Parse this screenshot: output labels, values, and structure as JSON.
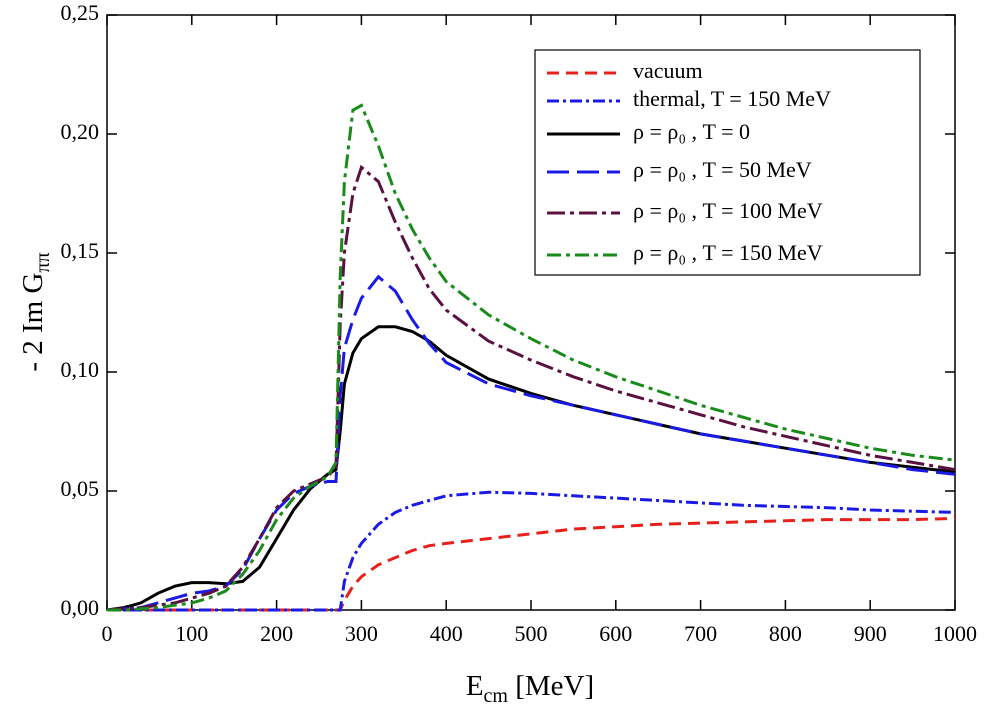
{
  "chart_data": {
    "type": "line",
    "xlabel": {
      "main": "E",
      "sub": "cm",
      "unit": " [MeV]"
    },
    "ylabel": {
      "main": "- 2 Im G",
      "sub": "ππ"
    },
    "xlim": [
      0,
      1000
    ],
    "xticks": [
      0,
      100,
      200,
      300,
      400,
      500,
      600,
      700,
      800,
      900,
      1000
    ],
    "ylim": [
      0,
      0.25
    ],
    "yticks": [
      {
        "value": 0,
        "label": "0,00"
      },
      {
        "value": 0.05,
        "label": "0,05"
      },
      {
        "value": 0.1,
        "label": "0,10"
      },
      {
        "value": 0.15,
        "label": "0,15"
      },
      {
        "value": 0.2,
        "label": "0,20"
      },
      {
        "value": 0.25,
        "label": "0,25"
      }
    ],
    "legend": "upper right",
    "x": [
      0,
      20,
      40,
      60,
      80,
      100,
      120,
      140,
      160,
      180,
      200,
      220,
      240,
      260,
      270,
      275,
      280,
      290,
      300,
      320,
      340,
      360,
      380,
      400,
      450,
      500,
      550,
      600,
      650,
      700,
      750,
      800,
      850,
      900,
      950,
      1000
    ],
    "series": [
      {
        "name": "vacuum",
        "color": "#e8201c",
        "dash": "12,7",
        "values": [
          0,
          0,
          0,
          0,
          0,
          0,
          0,
          0,
          0,
          0,
          0,
          0,
          0,
          0,
          0,
          0,
          0.004,
          0.01,
          0.014,
          0.019,
          0.022,
          0.025,
          0.027,
          0.028,
          0.03,
          0.032,
          0.034,
          0.035,
          0.036,
          0.0365,
          0.037,
          0.0375,
          0.038,
          0.038,
          0.038,
          0.0385
        ]
      },
      {
        "name": "thermal, T = 150 MeV",
        "color": "#1a1ae6",
        "dash": "12,4,3,4",
        "values": [
          0,
          0,
          0,
          0,
          0,
          0,
          0,
          0,
          0,
          0,
          0,
          0,
          0,
          0,
          0,
          0,
          0.012,
          0.022,
          0.028,
          0.036,
          0.041,
          0.044,
          0.046,
          0.048,
          0.0495,
          0.049,
          0.048,
          0.047,
          0.046,
          0.045,
          0.044,
          0.0435,
          0.043,
          0.042,
          0.0415,
          0.041
        ]
      },
      {
        "name": "ρ = ρ₀ , T = 0",
        "color": "#000000",
        "dash": "none",
        "values": [
          0,
          0.001,
          0.003,
          0.007,
          0.01,
          0.0115,
          0.0115,
          0.011,
          0.012,
          0.018,
          0.03,
          0.042,
          0.051,
          0.057,
          0.059,
          0.075,
          0.095,
          0.108,
          0.114,
          0.119,
          0.119,
          0.117,
          0.113,
          0.107,
          0.097,
          0.091,
          0.086,
          0.082,
          0.078,
          0.074,
          0.071,
          0.068,
          0.065,
          0.062,
          0.06,
          0.058
        ]
      },
      {
        "name": "ρ = ρ₀ , T = 50 MeV",
        "color": "#1a1ae6",
        "dash": "22,8",
        "values": [
          0,
          0.0005,
          0.001,
          0.003,
          0.005,
          0.007,
          0.008,
          0.01,
          0.017,
          0.03,
          0.042,
          0.049,
          0.052,
          0.054,
          0.054,
          0.09,
          0.11,
          0.122,
          0.131,
          0.14,
          0.134,
          0.122,
          0.112,
          0.104,
          0.095,
          0.09,
          0.086,
          0.082,
          0.078,
          0.074,
          0.071,
          0.068,
          0.065,
          0.062,
          0.059,
          0.057
        ]
      },
      {
        "name": "ρ = ρ₀ , T = 100 MeV",
        "color": "#5a1040",
        "dash": "18,5,4,5",
        "values": [
          0,
          0.0005,
          0.001,
          0.002,
          0.003,
          0.005,
          0.007,
          0.01,
          0.018,
          0.03,
          0.043,
          0.05,
          0.053,
          0.056,
          0.06,
          0.12,
          0.15,
          0.175,
          0.186,
          0.18,
          0.163,
          0.148,
          0.135,
          0.126,
          0.113,
          0.105,
          0.098,
          0.092,
          0.087,
          0.082,
          0.077,
          0.073,
          0.069,
          0.065,
          0.062,
          0.059
        ]
      },
      {
        "name": "ρ = ρ₀ , T = 150 MeV",
        "color": "#1a8a1a",
        "dash": "14,5,4,5",
        "values": [
          0,
          0,
          0.0005,
          0.001,
          0.002,
          0.003,
          0.005,
          0.008,
          0.015,
          0.025,
          0.038,
          0.047,
          0.052,
          0.056,
          0.062,
          0.14,
          0.18,
          0.21,
          0.212,
          0.195,
          0.175,
          0.16,
          0.148,
          0.138,
          0.124,
          0.114,
          0.105,
          0.098,
          0.092,
          0.086,
          0.081,
          0.076,
          0.072,
          0.068,
          0.065,
          0.063
        ]
      }
    ]
  }
}
